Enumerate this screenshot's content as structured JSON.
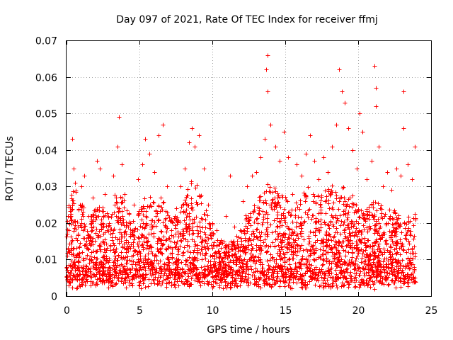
{
  "chart_data": {
    "type": "scatter",
    "title": "Day 097 of 2021, Rate Of TEC Index for receiver ffmj",
    "xlabel": "GPS time / hours",
    "ylabel": "ROTI / TECUs",
    "xlim": [
      0,
      25
    ],
    "ylim": [
      0,
      0.07
    ],
    "x_ticks": [
      0,
      5,
      10,
      15,
      20,
      25
    ],
    "x_tick_labels": [
      "0",
      "5",
      "10",
      "15",
      "20",
      "25"
    ],
    "y_ticks": [
      0,
      0.01,
      0.02,
      0.03,
      0.04,
      0.05,
      0.06,
      0.07
    ],
    "y_tick_labels": [
      "0",
      "0.01",
      "0.02",
      "0.03",
      "0.04",
      "0.05",
      "0.06",
      "0.07"
    ],
    "grid": true,
    "marker": "plus",
    "color": "#ff0000",
    "series": [
      {
        "name": "ROTI",
        "points": [
          [
            0.0,
            0.008
          ],
          [
            0.2,
            0.012
          ],
          [
            0.3,
            0.022
          ],
          [
            0.4,
            0.043
          ],
          [
            0.5,
            0.035
          ],
          [
            0.6,
            0.031
          ],
          [
            0.8,
            0.019
          ],
          [
            1.0,
            0.03
          ],
          [
            1.2,
            0.033
          ],
          [
            1.5,
            0.022
          ],
          [
            1.8,
            0.027
          ],
          [
            2.1,
            0.037
          ],
          [
            2.3,
            0.035
          ],
          [
            2.6,
            0.028
          ],
          [
            2.9,
            0.02
          ],
          [
            3.2,
            0.033
          ],
          [
            3.5,
            0.041
          ],
          [
            3.6,
            0.049
          ],
          [
            3.8,
            0.036
          ],
          [
            4.0,
            0.028
          ],
          [
            4.3,
            0.02
          ],
          [
            4.6,
            0.025
          ],
          [
            4.9,
            0.032
          ],
          [
            5.2,
            0.036
          ],
          [
            5.4,
            0.043
          ],
          [
            5.7,
            0.039
          ],
          [
            6.0,
            0.034
          ],
          [
            6.3,
            0.044
          ],
          [
            6.6,
            0.047
          ],
          [
            6.9,
            0.03
          ],
          [
            7.2,
            0.021
          ],
          [
            7.5,
            0.024
          ],
          [
            7.8,
            0.03
          ],
          [
            8.1,
            0.035
          ],
          [
            8.4,
            0.042
          ],
          [
            8.6,
            0.046
          ],
          [
            8.8,
            0.041
          ],
          [
            9.1,
            0.044
          ],
          [
            9.4,
            0.035
          ],
          [
            9.7,
            0.025
          ],
          [
            10.0,
            0.02
          ],
          [
            10.3,
            0.018
          ],
          [
            10.6,
            0.015
          ],
          [
            10.9,
            0.022
          ],
          [
            11.2,
            0.033
          ],
          [
            11.5,
            0.019
          ],
          [
            11.8,
            0.016
          ],
          [
            12.1,
            0.026
          ],
          [
            12.4,
            0.03
          ],
          [
            12.7,
            0.033
          ],
          [
            13.0,
            0.034
          ],
          [
            13.3,
            0.038
          ],
          [
            13.6,
            0.043
          ],
          [
            13.8,
            0.066
          ],
          [
            13.7,
            0.062
          ],
          [
            13.8,
            0.056
          ],
          [
            14.0,
            0.047
          ],
          [
            14.3,
            0.041
          ],
          [
            14.6,
            0.037
          ],
          [
            14.9,
            0.045
          ],
          [
            15.2,
            0.038
          ],
          [
            15.5,
            0.028
          ],
          [
            15.8,
            0.036
          ],
          [
            16.1,
            0.033
          ],
          [
            16.4,
            0.039
          ],
          [
            16.7,
            0.044
          ],
          [
            17.0,
            0.037
          ],
          [
            17.3,
            0.032
          ],
          [
            17.6,
            0.038
          ],
          [
            17.9,
            0.034
          ],
          [
            18.2,
            0.041
          ],
          [
            18.5,
            0.047
          ],
          [
            18.7,
            0.062
          ],
          [
            18.9,
            0.056
          ],
          [
            19.1,
            0.053
          ],
          [
            19.3,
            0.046
          ],
          [
            19.6,
            0.04
          ],
          [
            19.9,
            0.035
          ],
          [
            20.1,
            0.05
          ],
          [
            20.3,
            0.045
          ],
          [
            20.6,
            0.032
          ],
          [
            20.9,
            0.037
          ],
          [
            21.1,
            0.063
          ],
          [
            21.2,
            0.057
          ],
          [
            21.2,
            0.052
          ],
          [
            21.4,
            0.041
          ],
          [
            21.7,
            0.03
          ],
          [
            22.0,
            0.034
          ],
          [
            22.3,
            0.029
          ],
          [
            22.6,
            0.035
          ],
          [
            22.9,
            0.033
          ],
          [
            23.1,
            0.056
          ],
          [
            23.1,
            0.046
          ],
          [
            23.4,
            0.036
          ],
          [
            23.7,
            0.032
          ],
          [
            23.9,
            0.041
          ]
        ],
        "band": {
          "x_range": [
            0,
            23.95
          ],
          "y_floor": [
            0.002,
            0.006
          ],
          "upper_envelope": [
            [
              0,
              0.024
            ],
            [
              0.5,
              0.03
            ],
            [
              1,
              0.026
            ],
            [
              1.5,
              0.022
            ],
            [
              2,
              0.028
            ],
            [
              2.5,
              0.024
            ],
            [
              3,
              0.022
            ],
            [
              3.5,
              0.032
            ],
            [
              4,
              0.026
            ],
            [
              4.5,
              0.02
            ],
            [
              5,
              0.025
            ],
            [
              5.5,
              0.028
            ],
            [
              6,
              0.026
            ],
            [
              6.5,
              0.028
            ],
            [
              7,
              0.022
            ],
            [
              7.5,
              0.022
            ],
            [
              8,
              0.026
            ],
            [
              8.5,
              0.032
            ],
            [
              9,
              0.03
            ],
            [
              9.5,
              0.026
            ],
            [
              10,
              0.02
            ],
            [
              10.5,
              0.016
            ],
            [
              11,
              0.015
            ],
            [
              11.5,
              0.016
            ],
            [
              12,
              0.02
            ],
            [
              12.5,
              0.024
            ],
            [
              13,
              0.026
            ],
            [
              13.5,
              0.03
            ],
            [
              14,
              0.032
            ],
            [
              14.5,
              0.028
            ],
            [
              15,
              0.028
            ],
            [
              15.5,
              0.024
            ],
            [
              16,
              0.028
            ],
            [
              16.5,
              0.03
            ],
            [
              17,
              0.028
            ],
            [
              17.5,
              0.028
            ],
            [
              18,
              0.03
            ],
            [
              18.5,
              0.032
            ],
            [
              19,
              0.03
            ],
            [
              19.5,
              0.028
            ],
            [
              20,
              0.026
            ],
            [
              20.5,
              0.024
            ],
            [
              21,
              0.026
            ],
            [
              21.5,
              0.026
            ],
            [
              22,
              0.024
            ],
            [
              22.5,
              0.024
            ],
            [
              23,
              0.022
            ],
            [
              23.5,
              0.022
            ],
            [
              23.95,
              0.024
            ]
          ],
          "count": 3200
        }
      }
    ]
  }
}
